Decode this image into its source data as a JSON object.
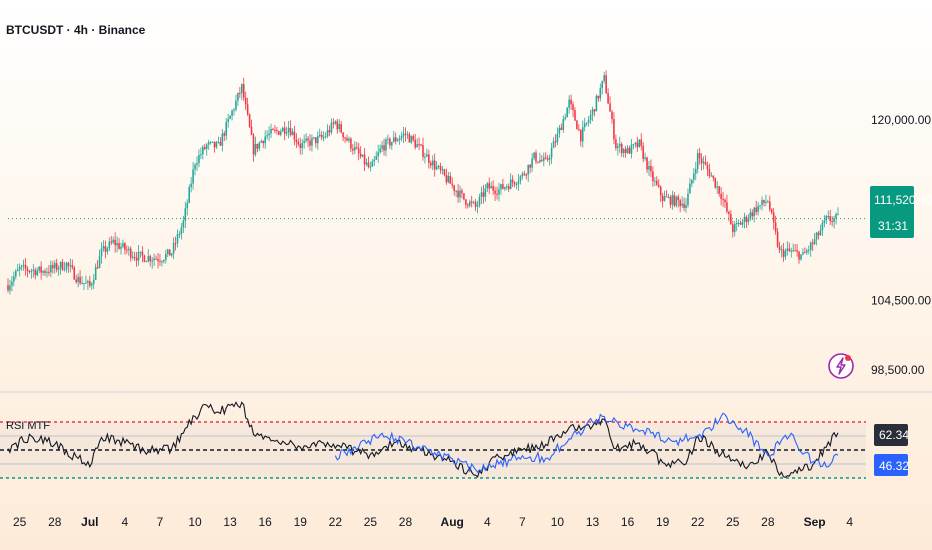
{
  "header": {
    "title": "BTCUSDT · 4h · Binance"
  },
  "colors": {
    "up": "#26a69a",
    "down": "#f23645",
    "wick": "#787b86",
    "rsi_black": "#131722",
    "rsi_blue": "#2962ff",
    "level_red": "#f23645",
    "level_green": "#089981",
    "level_mid": "#131722",
    "price_badge": "#089981",
    "rsi_badge_dark": "#2a2e39",
    "rsi_badge_blue": "#2962ff",
    "bolt": "#9c27b0"
  },
  "price_axis": {
    "labels": [
      "120,000.00",
      "104,500.00",
      "98,500.00"
    ],
    "current_price": "111,520.00",
    "countdown": "31:31"
  },
  "time_axis": {
    "labels": [
      "25",
      "28",
      "Jul",
      "4",
      "7",
      "10",
      "13",
      "16",
      "19",
      "22",
      "25",
      "28",
      "Aug",
      "4",
      "7",
      "10",
      "13",
      "16",
      "19",
      "22",
      "25",
      "28",
      "Sep",
      "4"
    ]
  },
  "indicator": {
    "name": "RSI MTF",
    "value_1": "62.34",
    "value_2": "46.32"
  },
  "bolt_icon": "lightning-bolt-icon",
  "chart_data": [
    {
      "type": "candlestick",
      "title": "BTCUSDT · 4h · Binance",
      "x_start": "Jun 24",
      "x_end": "Sep 3",
      "y_ticks": [
        120000,
        104500,
        98500
      ],
      "last_price": 111520,
      "ylim": [
        96800,
        126000
      ],
      "close_path": [
        {
          "x": "Jun 24",
          "y": 105800
        },
        {
          "x": "Jun 25",
          "y": 107200
        },
        {
          "x": "Jun 27",
          "y": 107000
        },
        {
          "x": "Jun 29",
          "y": 107600
        },
        {
          "x": "Jun 30",
          "y": 106300
        },
        {
          "x": "Jul 1",
          "y": 105700
        },
        {
          "x": "Jul 2",
          "y": 108600
        },
        {
          "x": "Jul 3",
          "y": 109500
        },
        {
          "x": "Jul 5",
          "y": 108300
        },
        {
          "x": "Jul 7",
          "y": 108100
        },
        {
          "x": "Jul 8",
          "y": 108600
        },
        {
          "x": "Jul 9",
          "y": 111200
        },
        {
          "x": "Jul 10",
          "y": 116400
        },
        {
          "x": "Jul 11",
          "y": 117800
        },
        {
          "x": "Jul 12",
          "y": 117700
        },
        {
          "x": "Jul 14",
          "y": 122800
        },
        {
          "x": "Jul 15",
          "y": 117400
        },
        {
          "x": "Jul 16",
          "y": 118600
        },
        {
          "x": "Jul 18",
          "y": 119400
        },
        {
          "x": "Jul 19",
          "y": 117800
        },
        {
          "x": "Jul 21",
          "y": 118500
        },
        {
          "x": "Jul 22",
          "y": 119800
        },
        {
          "x": "Jul 23",
          "y": 118300
        },
        {
          "x": "Jul 25",
          "y": 115700
        },
        {
          "x": "Jul 26",
          "y": 117700
        },
        {
          "x": "Jul 28",
          "y": 118800
        },
        {
          "x": "Jul 29",
          "y": 117800
        },
        {
          "x": "Jul 31",
          "y": 115500
        },
        {
          "x": "Aug 2",
          "y": 113200
        },
        {
          "x": "Aug 3",
          "y": 112500
        },
        {
          "x": "Aug 4",
          "y": 114200
        },
        {
          "x": "Aug 5",
          "y": 114000
        },
        {
          "x": "Aug 7",
          "y": 115200
        },
        {
          "x": "Aug 8",
          "y": 116800
        },
        {
          "x": "Aug 9",
          "y": 116300
        },
        {
          "x": "Aug 10",
          "y": 118600
        },
        {
          "x": "Aug 11",
          "y": 121500
        },
        {
          "x": "Aug 12",
          "y": 118600
        },
        {
          "x": "Aug 13",
          "y": 120700
        },
        {
          "x": "Aug 14",
          "y": 123500
        },
        {
          "x": "Aug 15",
          "y": 117800
        },
        {
          "x": "Aug 16",
          "y": 117300
        },
        {
          "x": "Aug 17",
          "y": 117900
        },
        {
          "x": "Aug 18",
          "y": 115200
        },
        {
          "x": "Aug 19",
          "y": 113300
        },
        {
          "x": "Aug 21",
          "y": 112800
        },
        {
          "x": "Aug 22",
          "y": 116900
        },
        {
          "x": "Aug 23",
          "y": 115500
        },
        {
          "x": "Aug 24",
          "y": 113600
        },
        {
          "x": "Aug 25",
          "y": 110600
        },
        {
          "x": "Aug 26",
          "y": 111400
        },
        {
          "x": "Aug 27",
          "y": 112400
        },
        {
          "x": "Aug 28",
          "y": 113100
        },
        {
          "x": "Aug 29",
          "y": 108600
        },
        {
          "x": "Aug 30",
          "y": 108700
        },
        {
          "x": "Aug 31",
          "y": 108300
        },
        {
          "x": "Sep 1",
          "y": 109600
        },
        {
          "x": "Sep 2",
          "y": 111400
        },
        {
          "x": "Sep 3",
          "y": 111520
        }
      ]
    },
    {
      "type": "line",
      "title": "RSI MTF",
      "levels": {
        "upper": 70,
        "middle": 50,
        "lower": 30
      },
      "series": [
        {
          "name": "",
          "color": "#131722",
          "values": [
            {
              "x": "Jun 24",
              "y": 51
            },
            {
              "x": "Jun 26",
              "y": 60
            },
            {
              "x": "Jun 28",
              "y": 54
            },
            {
              "x": "Jun 30",
              "y": 44
            },
            {
              "x": "Jul 1",
              "y": 38
            },
            {
              "x": "Jul 2",
              "y": 59
            },
            {
              "x": "Jul 4",
              "y": 55
            },
            {
              "x": "Jul 6",
              "y": 49
            },
            {
              "x": "Jul 8",
              "y": 51
            },
            {
              "x": "Jul 9",
              "y": 62
            },
            {
              "x": "Jul 10",
              "y": 74
            },
            {
              "x": "Jul 11",
              "y": 82
            },
            {
              "x": "Jul 12",
              "y": 77
            },
            {
              "x": "Jul 14",
              "y": 84
            },
            {
              "x": "Jul 15",
              "y": 61
            },
            {
              "x": "Jul 17",
              "y": 57
            },
            {
              "x": "Jul 19",
              "y": 52
            },
            {
              "x": "Jul 21",
              "y": 55
            },
            {
              "x": "Jul 23",
              "y": 51
            },
            {
              "x": "Jul 25",
              "y": 47
            },
            {
              "x": "Jul 27",
              "y": 55
            },
            {
              "x": "Jul 29",
              "y": 51
            },
            {
              "x": "Aug 1",
              "y": 42
            },
            {
              "x": "Aug 3",
              "y": 32
            },
            {
              "x": "Aug 5",
              "y": 45
            },
            {
              "x": "Aug 7",
              "y": 50
            },
            {
              "x": "Aug 9",
              "y": 54
            },
            {
              "x": "Aug 11",
              "y": 66
            },
            {
              "x": "Aug 13",
              "y": 67
            },
            {
              "x": "Aug 14",
              "y": 72
            },
            {
              "x": "Aug 15",
              "y": 51
            },
            {
              "x": "Aug 17",
              "y": 55
            },
            {
              "x": "Aug 19",
              "y": 41
            },
            {
              "x": "Aug 21",
              "y": 40
            },
            {
              "x": "Aug 22",
              "y": 60
            },
            {
              "x": "Aug 24",
              "y": 47
            },
            {
              "x": "Aug 26",
              "y": 38
            },
            {
              "x": "Aug 28",
              "y": 48
            },
            {
              "x": "Aug 29",
              "y": 32
            },
            {
              "x": "Aug 31",
              "y": 36
            },
            {
              "x": "Sep 1",
              "y": 41
            },
            {
              "x": "Sep 2",
              "y": 52
            },
            {
              "x": "Sep 3",
              "y": 62.34
            }
          ]
        },
        {
          "name": "",
          "color": "#2962ff",
          "values": [
            {
              "x": "Jul 22",
              "y": 46
            },
            {
              "x": "Jul 24",
              "y": 52
            },
            {
              "x": "Jul 26",
              "y": 62
            },
            {
              "x": "Jul 28",
              "y": 55
            },
            {
              "x": "Jul 30",
              "y": 50
            },
            {
              "x": "Aug 1",
              "y": 44
            },
            {
              "x": "Aug 3",
              "y": 36
            },
            {
              "x": "Aug 5",
              "y": 40
            },
            {
              "x": "Aug 7",
              "y": 46
            },
            {
              "x": "Aug 9",
              "y": 44
            },
            {
              "x": "Aug 11",
              "y": 58
            },
            {
              "x": "Aug 13",
              "y": 70
            },
            {
              "x": "Aug 14",
              "y": 74
            },
            {
              "x": "Aug 16",
              "y": 67
            },
            {
              "x": "Aug 18",
              "y": 62
            },
            {
              "x": "Aug 20",
              "y": 56
            },
            {
              "x": "Aug 22",
              "y": 60
            },
            {
              "x": "Aug 23",
              "y": 66
            },
            {
              "x": "Aug 24",
              "y": 74
            },
            {
              "x": "Aug 26",
              "y": 64
            },
            {
              "x": "Aug 28",
              "y": 46
            },
            {
              "x": "Aug 29",
              "y": 54
            },
            {
              "x": "Aug 30",
              "y": 62
            },
            {
              "x": "Aug 31",
              "y": 47
            },
            {
              "x": "Sep 1",
              "y": 42
            },
            {
              "x": "Sep 2",
              "y": 38
            },
            {
              "x": "Sep 3",
              "y": 46.32
            }
          ]
        }
      ]
    }
  ]
}
